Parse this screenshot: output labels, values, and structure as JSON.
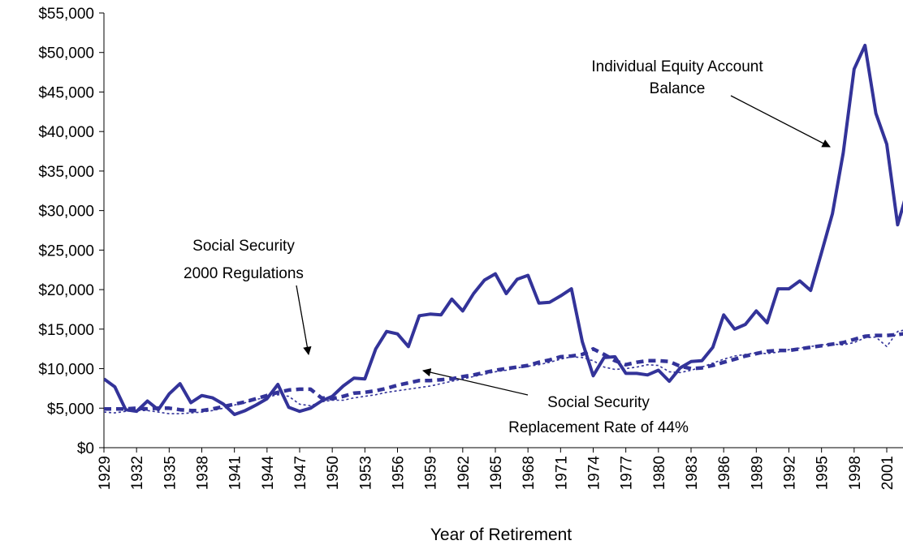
{
  "chart_data": {
    "type": "line",
    "x_label": "Year of Retirement",
    "x": [
      1929,
      1930,
      1931,
      1932,
      1933,
      1934,
      1935,
      1936,
      1937,
      1938,
      1939,
      1940,
      1941,
      1942,
      1943,
      1944,
      1945,
      1946,
      1947,
      1948,
      1949,
      1950,
      1951,
      1952,
      1953,
      1954,
      1955,
      1956,
      1957,
      1958,
      1959,
      1960,
      1961,
      1962,
      1963,
      1964,
      1965,
      1966,
      1967,
      1968,
      1969,
      1970,
      1971,
      1972,
      1973,
      1974,
      1975,
      1976,
      1977,
      1978,
      1979,
      1980,
      1981,
      1982,
      1983,
      1984,
      1985,
      1986,
      1987,
      1988,
      1989,
      1990,
      1991,
      1992,
      1993,
      1994,
      1995,
      1996,
      1997,
      1998,
      1999,
      2000,
      2001,
      2002,
      2003
    ],
    "xlim": [
      1929,
      2002.4
    ],
    "xticks": [
      1929,
      1932,
      1935,
      1938,
      1941,
      1944,
      1947,
      1950,
      1953,
      1956,
      1959,
      1962,
      1965,
      1968,
      1971,
      1974,
      1977,
      1980,
      1983,
      1986,
      1989,
      1992,
      1995,
      1998,
      2001
    ],
    "ylim": [
      0,
      55000
    ],
    "yticks": [
      {
        "value": 0,
        "label": "$0"
      },
      {
        "value": 5000,
        "label": "$5,000"
      },
      {
        "value": 10000,
        "label": "$10,000"
      },
      {
        "value": 15000,
        "label": "$15,000"
      },
      {
        "value": 20000,
        "label": "$20,000"
      },
      {
        "value": 25000,
        "label": "$25,000"
      },
      {
        "value": 30000,
        "label": "$30,000"
      },
      {
        "value": 35000,
        "label": "$35,000"
      },
      {
        "value": 40000,
        "label": "$40,000"
      },
      {
        "value": 45000,
        "label": "$45,000"
      },
      {
        "value": 50000,
        "label": "$50,000"
      },
      {
        "value": 55000,
        "label": "$55,000"
      }
    ],
    "series": [
      {
        "color": "#333399",
        "style": "solid",
        "values": [
          8700,
          7700,
          4800,
          4600,
          5900,
          4800,
          6800,
          8100,
          5700,
          6600,
          6300,
          5500,
          4200,
          4700,
          5400,
          6200,
          8000,
          5100,
          4600,
          5000,
          5900,
          6500,
          7800,
          8800,
          8700,
          12500,
          14700,
          14400,
          12800,
          16700,
          16900,
          16800,
          18800,
          17300,
          19500,
          21200,
          22000,
          19500,
          21300,
          21800,
          18300,
          18400,
          19200,
          20100,
          13400,
          9100,
          11400,
          11500,
          9400,
          9400,
          9200,
          9800,
          8400,
          10100,
          10900,
          11000,
          12700,
          16800,
          15000,
          15600,
          17300,
          15800,
          20100,
          20100,
          21100,
          19900,
          24700,
          29600,
          37300,
          47900,
          50900,
          42300,
          38400,
          28200,
          33000
        ]
      },
      {
        "color": "#333399",
        "style": "dashed",
        "values": [
          4900,
          4900,
          4900,
          5000,
          4900,
          5000,
          5000,
          4800,
          4700,
          4700,
          4900,
          5200,
          5500,
          5800,
          6200,
          6600,
          7000,
          7300,
          7400,
          7400,
          6300,
          6200,
          6500,
          6900,
          7000,
          7200,
          7500,
          7900,
          8200,
          8500,
          8500,
          8600,
          8700,
          9000,
          9200,
          9500,
          9800,
          10000,
          10200,
          10400,
          10800,
          11100,
          11500,
          11600,
          11800,
          12500,
          11800,
          11000,
          10500,
          10800,
          11000,
          11000,
          10900,
          10300,
          10000,
          10100,
          10400,
          10800,
          11200,
          11600,
          11900,
          12200,
          12300,
          12300,
          12500,
          12700,
          12900,
          13100,
          13300,
          13700,
          14100,
          14200,
          14200,
          14300,
          14500
        ]
      },
      {
        "color": "#333399",
        "style": "dotted",
        "values": [
          4500,
          4400,
          4600,
          4700,
          4700,
          4500,
          4300,
          4300,
          4400,
          4500,
          4700,
          5000,
          5400,
          5700,
          6100,
          6400,
          6700,
          6500,
          5500,
          5300,
          5800,
          6000,
          6000,
          6300,
          6500,
          6700,
          7000,
          7200,
          7400,
          7600,
          7800,
          8100,
          8400,
          8700,
          9000,
          9300,
          9600,
          9800,
          10100,
          10300,
          10500,
          10800,
          11200,
          11500,
          11400,
          11000,
          10200,
          9900,
          10000,
          10200,
          10500,
          10400,
          9600,
          9500,
          9800,
          10200,
          10700,
          11200,
          11600,
          11800,
          12000,
          11900,
          12100,
          12400,
          12600,
          12800,
          13000,
          13100,
          13000,
          13300,
          13900,
          14000,
          12800,
          14700,
          15000
        ]
      }
    ],
    "annotations": [
      {
        "lines": [
          "Individual Equity Account",
          "Balance"
        ]
      },
      {
        "lines": [
          "Social Security",
          "2000 Regulations"
        ]
      },
      {
        "lines": [
          "Social Security",
          "Replacement Rate of 44%"
        ]
      }
    ]
  }
}
